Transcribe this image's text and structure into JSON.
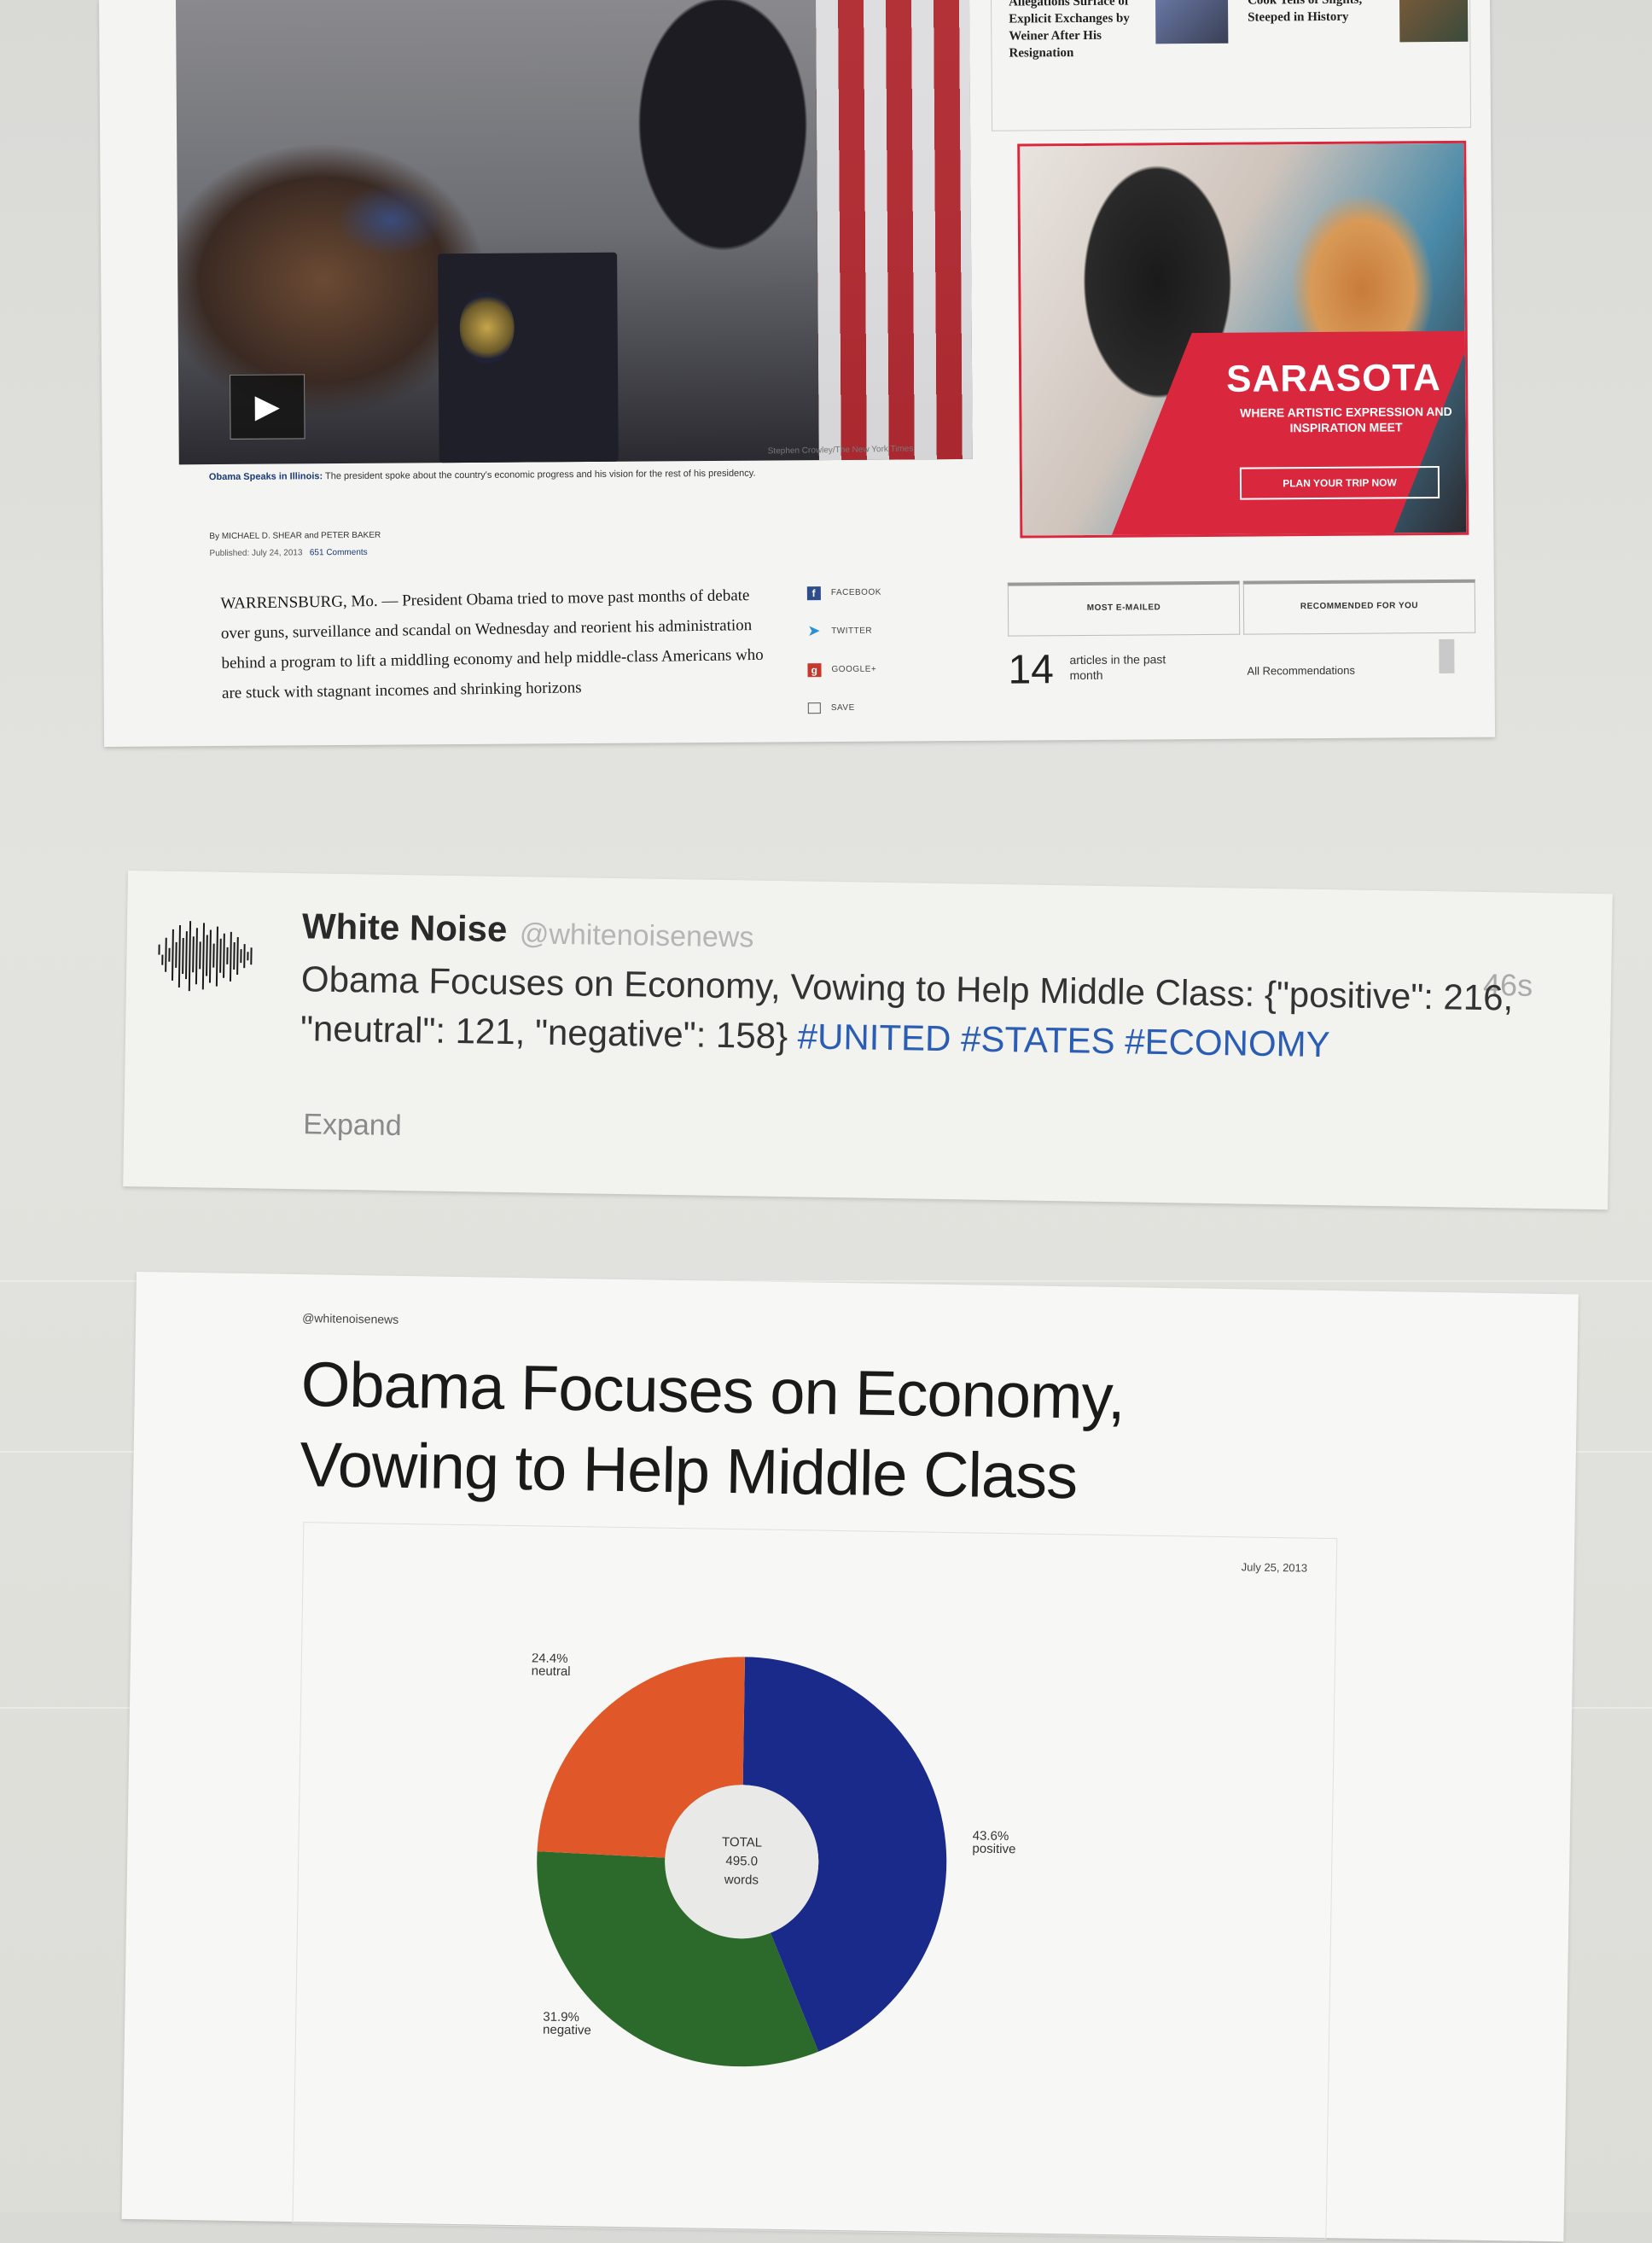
{
  "article": {
    "photo_credit": "Stephen Crowley/The New York Times",
    "caption_title": "Obama Speaks in Illinois:",
    "caption_text": "The president spoke about the country's economic progress and his vision for the rest of his presidency.",
    "byline": "By MICHAEL D. SHEAR and PETER BAKER",
    "published": "Published: July 24, 2013",
    "comments": "651 Comments",
    "body": "WARRENSBURG, Mo. — President Obama tried to move past months of debate over guns, surveillance and scandal on Wednesday and reorient his administration behind a program to lift a middling economy and help middle-class Americans who are stuck with stagnant incomes and shrinking horizons",
    "play_icon": "play-icon"
  },
  "share": {
    "items": [
      {
        "label": "FACEBOOK",
        "icon": "facebook-icon"
      },
      {
        "label": "TWITTER",
        "icon": "twitter-icon"
      },
      {
        "label": "GOOGLE+",
        "icon": "google-plus-icon"
      },
      {
        "label": "SAVE",
        "icon": "save-icon"
      }
    ]
  },
  "sidebar": {
    "story1": "Allegations Surface of Explicit Exchanges by Weiner After His Resignation",
    "story2": "Cook Tells of Slights, Steeped in History"
  },
  "ad": {
    "title": "SARASOTA",
    "subtitle": "WHERE ARTISTIC EXPRESSION AND INSPIRATION MEET",
    "cta": "PLAN YOUR TRIP NOW",
    "accent": "#d9283d"
  },
  "tabs": {
    "most_emailed": "MOST E-MAILED",
    "recommended": "RECOMMENDED FOR YOU",
    "count": "14",
    "count_label": "articles in the past month",
    "all_recs": "All Recommendations"
  },
  "tweet": {
    "name": "White Noise",
    "handle": "@whitenoisenews",
    "time": "46s",
    "text": "Obama Focuses on Economy, Vowing to Help Middle Class: {\"positive\": 216, \"neutral\": 121, \"negative\": 158}",
    "hashtag1": "#UNITED",
    "hashtag2": "#STATES",
    "hashtag3": "#ECONOMY",
    "expand": "Expand",
    "hashtag_color": "#2b5db5"
  },
  "chart_card": {
    "handle": "@whitenoisenews",
    "title_line1": "Obama Focuses on Economy,",
    "title_line2": "Vowing to Help Middle Class",
    "date": "July 25, 2013"
  },
  "chart_data": {
    "type": "pie",
    "variant": "donut",
    "center_label": [
      "TOTAL",
      "495.0",
      "words"
    ],
    "slices": [
      {
        "name": "positive",
        "value": 216,
        "percent": "43.6%",
        "color": "#1a2a8a"
      },
      {
        "name": "negative",
        "value": 158,
        "percent": "31.9%",
        "color": "#2c6a2c"
      },
      {
        "name": "neutral",
        "value": 121,
        "percent": "24.4%",
        "color": "#e0572a"
      }
    ]
  }
}
